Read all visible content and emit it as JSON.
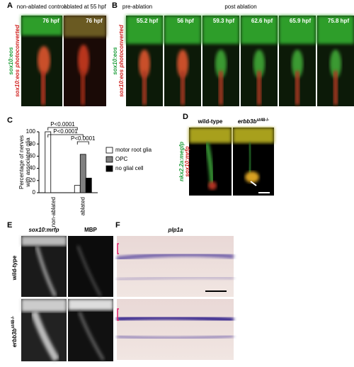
{
  "panels": {
    "A": {
      "label": "A",
      "columns": [
        "non-ablated control",
        "ablated at 55 hpf"
      ],
      "times": [
        "76 hpf",
        "76 hpf"
      ],
      "green_label": "sox10:eos",
      "red_label": "sox10:eos photoconverted"
    },
    "B": {
      "label": "B",
      "phases": [
        "pre-ablation",
        "post ablation"
      ],
      "times": [
        "55.2 hpf",
        "56 hpf",
        "59.3 hpf",
        "62.6 hpf",
        "65.9 hpf",
        "75.8 hpf"
      ],
      "green_label": "sox10:eos",
      "red_label": "sox10:eos photoconverted"
    },
    "C": {
      "label": "C"
    },
    "D": {
      "label": "D",
      "columns": [
        "wild-type",
        "erbb3b"
      ],
      "superscript": "st48-/-",
      "green_label": "nkx2.2a:megfp",
      "red_label": "sox10:mrfp"
    },
    "E": {
      "label": "E",
      "columns": [
        "sox10:mrfp",
        "MBP"
      ],
      "rows": [
        "wild-type",
        "erbb3b"
      ],
      "superscript": "st48-/-"
    },
    "F": {
      "label": "F",
      "title": "plp1a"
    }
  },
  "chart_data": {
    "type": "bar",
    "y_label": [
      "Percentage of nerves",
      "with associated glia"
    ],
    "categories": [
      "non-ablated",
      "ablated"
    ],
    "series": [
      {
        "name": "motor root glia",
        "color": "#ffffff",
        "values": [
          100,
          12
        ]
      },
      {
        "name": "OPC",
        "color": "#808080",
        "values": [
          0,
          63
        ]
      },
      {
        "name": "no glial cell",
        "color": "#000000",
        "values": [
          0,
          24
        ]
      }
    ],
    "ylim": [
      0,
      100
    ],
    "yticks": [
      0,
      20,
      40,
      60,
      80,
      100
    ],
    "annotations": [
      "P<0.0001",
      "P<0.0001",
      "P<0.0001"
    ]
  }
}
